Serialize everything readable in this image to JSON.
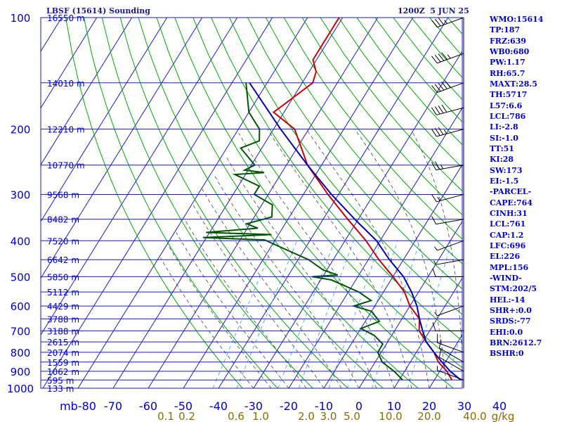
{
  "header": {
    "title": "LBSF (15614) Sounding",
    "datetime": "1200Z  5 JUN 25"
  },
  "indices": [
    "WMO:15614",
    "TP:187",
    "FRZ:639",
    "WB0:680",
    "PW:1.17",
    "RH:65.7",
    "MAXT:28.5",
    "TH:5717",
    "L57:6.6",
    "LCL:786",
    "LI:-2.8",
    "SI:-1.0",
    "TT:51",
    "KI:28",
    "SW:173",
    "EI:-1.5",
    "-PARCEL-",
    "CAPE:764",
    "CINH:31",
    "LCL:761",
    "CAP:1.2",
    "LFC:696",
    "EL:226",
    "MPL:156",
    "-WIND-",
    "STM:202/5",
    "HEL:-14",
    "SHR+:0.0",
    "SRDS:-77",
    "EHI:0.0",
    "BRN:2612.7",
    "BSHR:0"
  ],
  "colors": {
    "isobar": "#1a1acc",
    "isotherm": "#1a1acc",
    "dry_adiabat": "#00aa00",
    "moist_adiabat": "#444444",
    "mixing_ratio": "#2a9df4",
    "temperature": "#cc0000",
    "dewpoint": "#005500",
    "parcel": "#0000aa",
    "axis_text": "#0000cc",
    "mix_label_text": "#8b6b00"
  },
  "chart_data": {
    "type": "line",
    "title": "",
    "xlabel": "",
    "ylabel": "mb",
    "ylim": [
      1000,
      100
    ],
    "xlim": [
      -80,
      40
    ],
    "y_scale": "log",
    "x_unit": "°C",
    "y_unit": "mb",
    "pressure_ticks": [
      100,
      200,
      300,
      400,
      500,
      600,
      700,
      800,
      900,
      1000
    ],
    "temperature_ticks": [
      -80,
      -70,
      -60,
      -50,
      -40,
      -30,
      -20,
      -10,
      0,
      10,
      20,
      30,
      40
    ],
    "temperature_tick_labels": [
      "mb-80",
      "-70",
      "-60",
      "-50",
      "-40",
      "-30",
      "-20",
      "-10",
      "0",
      "10",
      "20",
      "30",
      "40"
    ],
    "height_labels": [
      {
        "p": 100,
        "label": "16550 m"
      },
      {
        "p": 150,
        "label": "14010 m"
      },
      {
        "p": 200,
        "label": "12210 m"
      },
      {
        "p": 250,
        "label": "10770 m"
      },
      {
        "p": 300,
        "label": "9568 m"
      },
      {
        "p": 350,
        "label": "8482 m"
      },
      {
        "p": 400,
        "label": "7520 m"
      },
      {
        "p": 450,
        "label": "6642 m"
      },
      {
        "p": 500,
        "label": "5850 m"
      },
      {
        "p": 550,
        "label": "5112 m"
      },
      {
        "p": 600,
        "label": "4429 m"
      },
      {
        "p": 650,
        "label": "3788 m"
      },
      {
        "p": 700,
        "label": "3188 m"
      },
      {
        "p": 750,
        "label": "2615 m"
      },
      {
        "p": 800,
        "label": "2074 m"
      },
      {
        "p": 850,
        "label": "1559 m"
      },
      {
        "p": 900,
        "label": "1062 m"
      },
      {
        "p": 950,
        "label": "595 m"
      },
      {
        "p": 1000,
        "label": "133 m"
      }
    ],
    "mixing_ratio_labels": [
      "0.1",
      "0.2",
      "0.6",
      "1.0",
      "2.0",
      "3.0",
      "5.0",
      "10.0",
      "20.0",
      "40.0",
      "g/kg"
    ],
    "mixing_ratio_label_temps": [
      -55,
      -49,
      -35,
      -28,
      -15,
      -8.7,
      -2,
      9,
      20,
      33,
      41
    ],
    "series": [
      {
        "name": "",
        "role": "temperature",
        "points": [
          {
            "p": 100,
            "t": -71
          },
          {
            "p": 130,
            "t": -71
          },
          {
            "p": 140,
            "t": -68
          },
          {
            "p": 150,
            "t": -67
          },
          {
            "p": 175,
            "t": -72
          },
          {
            "p": 180,
            "t": -73
          },
          {
            "p": 200,
            "t": -64
          },
          {
            "p": 250,
            "t": -54
          },
          {
            "p": 300,
            "t": -43
          },
          {
            "p": 350,
            "t": -33
          },
          {
            "p": 400,
            "t": -24
          },
          {
            "p": 450,
            "t": -17
          },
          {
            "p": 500,
            "t": -10
          },
          {
            "p": 550,
            "t": -4
          },
          {
            "p": 600,
            "t": 0
          },
          {
            "p": 650,
            "t": 5
          },
          {
            "p": 700,
            "t": 7
          },
          {
            "p": 750,
            "t": 11
          },
          {
            "p": 800,
            "t": 15
          },
          {
            "p": 850,
            "t": 18
          },
          {
            "p": 900,
            "t": 22
          },
          {
            "p": 950,
            "t": 25
          }
        ]
      },
      {
        "name": "",
        "role": "dewpoint",
        "points": [
          {
            "p": 150,
            "t": -86
          },
          {
            "p": 180,
            "t": -80
          },
          {
            "p": 200,
            "t": -74
          },
          {
            "p": 215,
            "t": -72
          },
          {
            "p": 225,
            "t": -76
          },
          {
            "p": 250,
            "t": -69
          },
          {
            "p": 258,
            "t": -71
          },
          {
            "p": 262,
            "t": -65
          },
          {
            "p": 265,
            "t": -73
          },
          {
            "p": 285,
            "t": -64
          },
          {
            "p": 300,
            "t": -64
          },
          {
            "p": 320,
            "t": -57
          },
          {
            "p": 345,
            "t": -55
          },
          {
            "p": 360,
            "t": -61
          },
          {
            "p": 370,
            "t": -57
          },
          {
            "p": 380,
            "t": -71
          },
          {
            "p": 385,
            "t": -52
          },
          {
            "p": 392,
            "t": -71
          },
          {
            "p": 398,
            "t": -53
          },
          {
            "p": 420,
            "t": -46
          },
          {
            "p": 450,
            "t": -37
          },
          {
            "p": 480,
            "t": -31
          },
          {
            "p": 495,
            "t": -26
          },
          {
            "p": 500,
            "t": -33
          },
          {
            "p": 510,
            "t": -27
          },
          {
            "p": 550,
            "t": -17
          },
          {
            "p": 580,
            "t": -12
          },
          {
            "p": 600,
            "t": -16
          },
          {
            "p": 620,
            "t": -10
          },
          {
            "p": 660,
            "t": -6
          },
          {
            "p": 690,
            "t": -10
          },
          {
            "p": 720,
            "t": -5
          },
          {
            "p": 760,
            "t": -1
          },
          {
            "p": 800,
            "t": -1
          },
          {
            "p": 850,
            "t": 2
          },
          {
            "p": 900,
            "t": 7
          },
          {
            "p": 950,
            "t": 11
          }
        ]
      },
      {
        "name": "",
        "role": "parcel",
        "points": [
          {
            "p": 150,
            "t": -85
          },
          {
            "p": 200,
            "t": -68
          },
          {
            "p": 250,
            "t": -54
          },
          {
            "p": 300,
            "t": -42
          },
          {
            "p": 350,
            "t": -31
          },
          {
            "p": 400,
            "t": -21
          },
          {
            "p": 450,
            "t": -14
          },
          {
            "p": 500,
            "t": -7
          },
          {
            "p": 550,
            "t": -2
          },
          {
            "p": 600,
            "t": 2
          },
          {
            "p": 650,
            "t": 5
          },
          {
            "p": 700,
            "t": 8
          },
          {
            "p": 750,
            "t": 11
          },
          {
            "p": 800,
            "t": 15
          },
          {
            "p": 850,
            "t": 19
          },
          {
            "p": 900,
            "t": 23
          },
          {
            "p": 950,
            "t": 27.5
          }
        ]
      }
    ],
    "wind_barbs_kt": [
      {
        "p": 100,
        "dir": 250,
        "spd": 35
      },
      {
        "p": 125,
        "dir": 250,
        "spd": 45
      },
      {
        "p": 150,
        "dir": 250,
        "spd": 50
      },
      {
        "p": 175,
        "dir": 255,
        "spd": 40
      },
      {
        "p": 200,
        "dir": 255,
        "spd": 35
      },
      {
        "p": 250,
        "dir": 260,
        "spd": 25
      },
      {
        "p": 300,
        "dir": 255,
        "spd": 15
      },
      {
        "p": 350,
        "dir": 260,
        "spd": 10
      },
      {
        "p": 400,
        "dir": 250,
        "spd": 5
      },
      {
        "p": 450,
        "dir": 260,
        "spd": 5
      },
      {
        "p": 500,
        "dir": 270,
        "spd": 10
      },
      {
        "p": 600,
        "dir": 250,
        "spd": 5
      },
      {
        "p": 700,
        "dir": 270,
        "spd": 10
      },
      {
        "p": 800,
        "dir": 290,
        "spd": 10
      },
      {
        "p": 850,
        "dir": 300,
        "spd": 10
      },
      {
        "p": 900,
        "dir": 300,
        "spd": 10
      },
      {
        "p": 950,
        "dir": 290,
        "spd": 5
      }
    ]
  }
}
